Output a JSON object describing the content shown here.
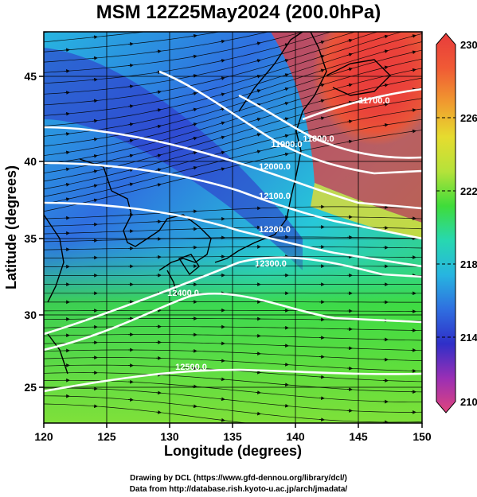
{
  "title": "MSM 12Z25May2024 (200.0hPa)",
  "x_axis": {
    "label": "Longitude (degrees)",
    "ticks": [
      "120",
      "125",
      "130",
      "135",
      "140",
      "145",
      "150"
    ]
  },
  "y_axis": {
    "label": "Latitude (degrees)",
    "ticks": [
      "25",
      "30",
      "35",
      "40",
      "45"
    ]
  },
  "colorbar": {
    "ticks": [
      "230",
      "226",
      "222",
      "218",
      "214",
      "210"
    ],
    "colors": [
      "#e0447c",
      "#9a2fb5",
      "#2f2fc8",
      "#2f6fe0",
      "#27b5e0",
      "#27d8b0",
      "#3fdc3a",
      "#b5e23a",
      "#e6dc2f",
      "#f09a2f",
      "#f05a35",
      "#e83c3c"
    ]
  },
  "contours": [
    {
      "label": "11700.0"
    },
    {
      "label": "11800.0"
    },
    {
      "label": "11900.0"
    },
    {
      "label": "12000.0"
    },
    {
      "label": "12100.0"
    },
    {
      "label": "12200.0"
    },
    {
      "label": "12300.0"
    },
    {
      "label": "12400.0"
    },
    {
      "label": "12500.0"
    }
  ],
  "credits": {
    "line1": "Drawing by DCL (https://www.gfd-dennou.org/library/dcl/)",
    "line2": "Data from http://database.rish.kyoto-u.ac.jp/arch/jmadata/"
  }
}
